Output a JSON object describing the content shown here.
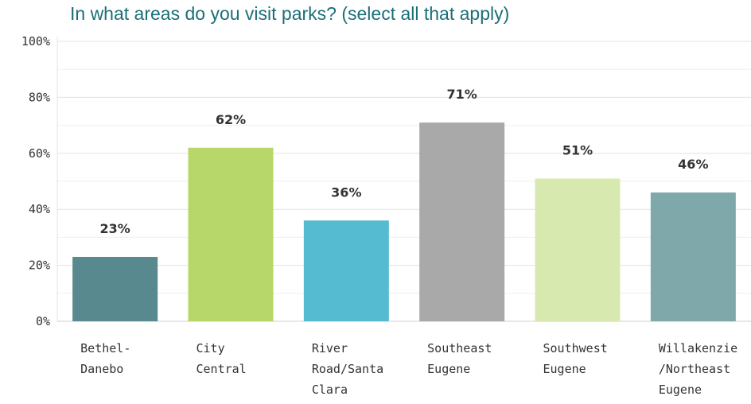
{
  "chart_data": {
    "type": "bar",
    "title": "In what areas do you visit parks? (select all that apply)",
    "categories": [
      [
        "Bethel-",
        "Danebo"
      ],
      [
        "City",
        "Central"
      ],
      [
        "River",
        "Road/Santa",
        "Clara"
      ],
      [
        "Southeast",
        "Eugene"
      ],
      [
        "Southwest",
        "Eugene"
      ],
      [
        "Willakenzie",
        "/Northeast",
        "Eugene"
      ]
    ],
    "values": [
      23,
      62,
      36,
      71,
      51,
      46
    ],
    "data_labels": [
      "23%",
      "62%",
      "36%",
      "71%",
      "51%",
      "46%"
    ],
    "colors": [
      "#57898f",
      "#b8d76a",
      "#55bbd0",
      "#a9a9a9",
      "#d8e9b0",
      "#7fa8ab"
    ],
    "ylim": [
      0,
      100
    ],
    "yticks": [
      0,
      20,
      40,
      60,
      80,
      100
    ],
    "ytick_labels": [
      "0%",
      "20%",
      "40%",
      "60%",
      "80%",
      "100%"
    ],
    "grid": true,
    "xlabel": "",
    "ylabel": ""
  }
}
